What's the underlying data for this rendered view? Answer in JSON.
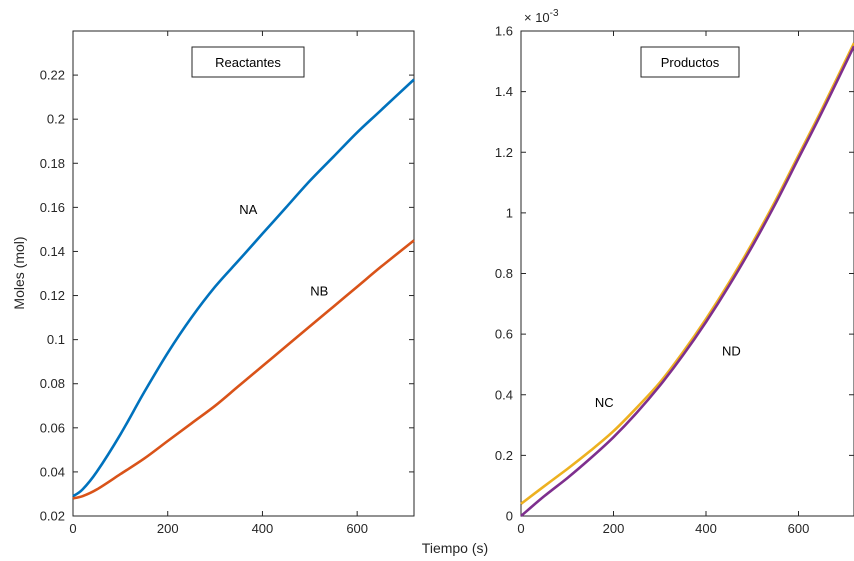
{
  "chart_data": [
    {
      "type": "line",
      "xlabel": "Tiempo (s)",
      "ylabel": "Moles (mol)",
      "xlim": [
        0,
        720
      ],
      "ylim": [
        0.02,
        0.24
      ],
      "xticks": [
        0,
        200,
        400,
        600
      ],
      "yticks": [
        0.02,
        0.04,
        0.06,
        0.08,
        0.1,
        0.12,
        0.14,
        0.16,
        0.18,
        0.2,
        0.22
      ],
      "ytick_labels": [
        "0.02",
        "0.04",
        "0.06",
        "0.08",
        "0.1",
        "0.12",
        "0.14",
        "0.16",
        "0.18",
        "0.2",
        "0.22"
      ],
      "legend_box": "Reactantes",
      "grid": false,
      "series": [
        {
          "name": "NA",
          "color": "#0072BD",
          "x": [
            0,
            20,
            50,
            100,
            150,
            200,
            250,
            300,
            350,
            400,
            450,
            500,
            550,
            600,
            650,
            720
          ],
          "y": [
            0.029,
            0.032,
            0.04,
            0.057,
            0.076,
            0.094,
            0.11,
            0.124,
            0.136,
            0.148,
            0.16,
            0.172,
            0.183,
            0.194,
            0.204,
            0.218
          ]
        },
        {
          "name": "NB",
          "color": "#D95319",
          "x": [
            0,
            20,
            50,
            100,
            150,
            200,
            250,
            300,
            350,
            400,
            450,
            500,
            550,
            600,
            650,
            720
          ],
          "y": [
            0.028,
            0.029,
            0.032,
            0.039,
            0.046,
            0.054,
            0.062,
            0.07,
            0.079,
            0.088,
            0.097,
            0.106,
            0.115,
            0.124,
            0.133,
            0.145
          ]
        }
      ],
      "annotations": [
        {
          "text": "NA",
          "x": 370,
          "y": 0.157
        },
        {
          "text": "NB",
          "x": 520,
          "y": 0.12
        }
      ]
    },
    {
      "type": "line",
      "xlabel": "",
      "ylabel": "",
      "xlim": [
        0,
        720
      ],
      "ylim": [
        0,
        0.0016
      ],
      "xticks": [
        0,
        200,
        400,
        600
      ],
      "yticks": [
        0,
        0.0002,
        0.0004,
        0.0006,
        0.0008,
        0.001,
        0.0012,
        0.0014,
        0.0016
      ],
      "ytick_labels": [
        "0",
        "0.2",
        "0.4",
        "0.6",
        "0.8",
        "1",
        "1.2",
        "1.4",
        "1.6"
      ],
      "exponent_base": "× 10",
      "exponent_power": "-3",
      "legend_box": "Productos",
      "grid": false,
      "series": [
        {
          "name": "NC",
          "color": "#EDB120",
          "x": [
            0,
            50,
            100,
            150,
            200,
            250,
            300,
            350,
            400,
            450,
            500,
            550,
            600,
            650,
            720
          ],
          "y": [
            4e-05,
            9.8e-05,
            0.000155,
            0.000215,
            0.00028,
            0.000357,
            0.00044,
            0.00054,
            0.00065,
            0.00077,
            0.0009,
            0.00104,
            0.00119,
            0.00134,
            0.00156
          ]
        },
        {
          "name": "ND",
          "color": "#7E2F8E",
          "x": [
            0,
            50,
            100,
            150,
            200,
            250,
            300,
            350,
            400,
            450,
            500,
            550,
            600,
            650,
            720
          ],
          "y": [
            0.0,
            6.5e-05,
            0.000125,
            0.00019,
            0.00026,
            0.00034,
            0.00043,
            0.00053,
            0.00064,
            0.00076,
            0.00089,
            0.00103,
            0.00118,
            0.00133,
            0.00155
          ]
        }
      ],
      "annotations": [
        {
          "text": "NC",
          "x": 180,
          "y": 0.00036
        },
        {
          "text": "ND",
          "x": 455,
          "y": 0.00053
        }
      ]
    }
  ]
}
